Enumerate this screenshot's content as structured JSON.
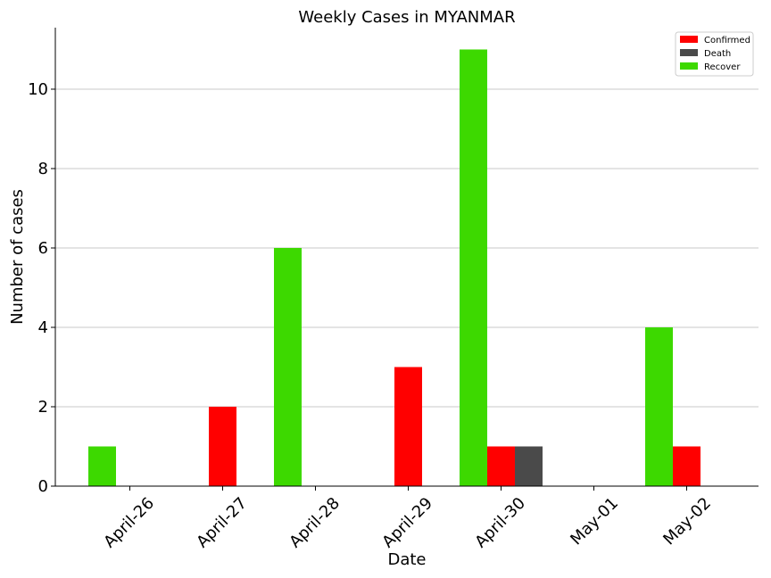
{
  "chart_data": {
    "type": "bar",
    "title": "Weekly Cases in MYANMAR",
    "xlabel": "Date",
    "ylabel": "Number of cases",
    "categories": [
      "April-26",
      "April-27",
      "April-28",
      "April-29",
      "April-30",
      "May-01",
      "May-02"
    ],
    "series": [
      {
        "name": "Recover",
        "color": "#3dd900",
        "values": [
          1,
          0,
          6,
          0,
          11,
          0,
          4
        ]
      },
      {
        "name": "Confirmed",
        "color": "#ff0000",
        "values": [
          0,
          2,
          0,
          3,
          1,
          0,
          1
        ]
      },
      {
        "name": "Death",
        "color": "#4a4a4a",
        "values": [
          0,
          0,
          0,
          0,
          1,
          0,
          0
        ]
      }
    ],
    "legend_order": [
      "Confirmed",
      "Death",
      "Recover"
    ],
    "ylim": [
      0,
      11.55
    ],
    "yticks": [
      0,
      2,
      4,
      6,
      8,
      10
    ],
    "grid": "horizontal",
    "legend_position": "top-right"
  }
}
